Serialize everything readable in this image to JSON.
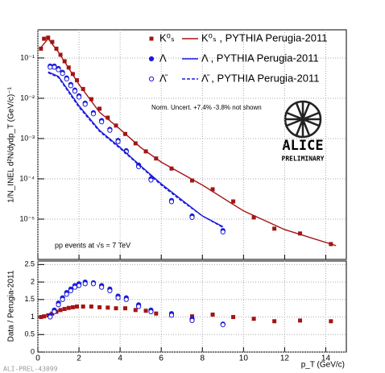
{
  "chart_data": [
    {
      "type": "line",
      "log_y": true,
      "grid": true,
      "y_label": "1/N_INEL d²N/dydp_T (GeV/c)⁻¹",
      "xlim": [
        0,
        15
      ],
      "ylim": [
        1e-06,
        0.5
      ],
      "yticks": [
        {
          "value": 1e-05,
          "label": "10⁻⁵"
        },
        {
          "value": 0.0001,
          "label": "10⁻⁴"
        },
        {
          "value": 0.001,
          "label": "10⁻³"
        },
        {
          "value": 0.01,
          "label": "10⁻²"
        },
        {
          "value": 0.1,
          "label": "10⁻¹"
        }
      ],
      "annotations": [
        "Norm. Uncert. +7.4% -3.8% not shown",
        "pp events at √s = 7 TeV",
        "ALICE",
        "PRELIMINARY"
      ],
      "series": [
        {
          "name": "K⁰ₛ",
          "color": "#a31515",
          "marker": "square",
          "x": [
            0.15,
            0.3,
            0.5,
            0.7,
            0.9,
            1.1,
            1.3,
            1.5,
            1.7,
            1.9,
            2.2,
            2.6,
            3.0,
            3.4,
            3.8,
            4.25,
            4.75,
            5.25,
            5.75,
            6.5,
            7.5,
            8.5,
            9.5,
            10.5,
            11.5,
            12.75,
            14.25
          ],
          "values": [
            0.17,
            0.3,
            0.32,
            0.25,
            0.17,
            0.12,
            0.083,
            0.058,
            0.04,
            0.028,
            0.017,
            0.0095,
            0.0055,
            0.0033,
            0.0021,
            0.0013,
            0.00076,
            0.00048,
            0.00032,
            0.00018,
            9.1e-05,
            5.5e-05,
            2.75e-05,
            1.1e-05,
            5.8e-06,
            4.4e-06,
            2.4e-06
          ]
        },
        {
          "name": "Λ",
          "color": "#1a1adb",
          "marker": "circle",
          "x": [
            0.6,
            0.8,
            1.0,
            1.2,
            1.4,
            1.6,
            1.8,
            2.0,
            2.3,
            2.7,
            3.1,
            3.5,
            3.9,
            4.3,
            4.9,
            5.5,
            6.5,
            7.5,
            9
          ],
          "values": [
            0.063,
            0.063,
            0.055,
            0.044,
            0.032,
            0.022,
            0.016,
            0.0115,
            0.0076,
            0.0044,
            0.0028,
            0.0017,
            0.0009,
            0.0005,
            0.00022,
            0.0001,
            2.9e-05,
            1.2e-05,
            5.2e-06
          ]
        },
        {
          "name": "Λ̄",
          "color": "#1a1adb",
          "marker": "open-circle",
          "x": [
            0.6,
            0.8,
            1.0,
            1.2,
            1.4,
            1.6,
            1.8,
            2.0,
            2.3,
            2.7,
            3.1,
            3.5,
            3.9,
            4.3,
            4.9,
            5.5,
            6.5,
            7.5,
            9
          ],
          "values": [
            0.059,
            0.059,
            0.051,
            0.041,
            0.03,
            0.0205,
            0.015,
            0.0107,
            0.0071,
            0.0041,
            0.0026,
            0.0016,
            0.00084,
            0.00047,
            0.0002,
            9.3e-05,
            2.7e-05,
            1.1e-05,
            4.8e-06
          ]
        },
        {
          "name": "K⁰ₛ , PYTHIA Perugia-2011",
          "color": "#a31515",
          "dash": false,
          "x": [
            0.1,
            0.5,
            1,
            2,
            3,
            4,
            5,
            6,
            8,
            10,
            12,
            14.5
          ],
          "values": [
            0.17,
            0.3,
            0.14,
            0.022,
            0.0045,
            0.0017,
            0.0006,
            0.00026,
            7e-05,
            1.6e-05,
            5.5e-06,
            2.2e-06
          ]
        },
        {
          "name": "Λ , PYTHIA Perugia-2011",
          "color": "#1a1adb",
          "dash": false,
          "x": [
            0.5,
            1,
            2,
            3,
            4,
            5,
            6,
            7,
            8,
            9
          ],
          "values": [
            0.045,
            0.035,
            0.0065,
            0.0016,
            0.0006,
            0.00021,
            7.5e-05,
            3e-05,
            1.2e-05,
            6.5e-06
          ]
        },
        {
          "name": "Λ̄ , PYTHIA Perugia-2011",
          "color": "#1a1adb",
          "dash": true,
          "x": [
            0.5,
            1,
            2,
            3,
            4,
            5,
            6,
            7,
            8,
            9
          ],
          "values": [
            0.043,
            0.033,
            0.006,
            0.0015,
            0.00057,
            0.0002,
            7e-05,
            2.8e-05,
            1.2e-05,
            6.2e-06
          ]
        }
      ]
    },
    {
      "type": "line",
      "grid": true,
      "y_label": "Data / Perugia-2011",
      "x_label": "p_T (GeV/c)",
      "xlim": [
        0,
        15
      ],
      "ylim": [
        0,
        2.6
      ],
      "xticks": [
        0,
        2,
        4,
        6,
        8,
        10,
        12,
        14
      ],
      "yticks": [
        0,
        0.5,
        1,
        1.5,
        2,
        2.5
      ],
      "series": [
        {
          "color": "#a31515",
          "marker": "square",
          "x": [
            0.15,
            0.3,
            0.5,
            0.7,
            0.9,
            1.1,
            1.3,
            1.5,
            1.7,
            1.9,
            2.2,
            2.6,
            3.0,
            3.4,
            3.8,
            4.25,
            4.75,
            5.25,
            5.75,
            6.5,
            7.5,
            8.5,
            9.5,
            10.5,
            11.5,
            12.75,
            14.25
          ],
          "values": [
            1.0,
            1.02,
            1.05,
            1.1,
            1.15,
            1.2,
            1.23,
            1.26,
            1.28,
            1.3,
            1.3,
            1.3,
            1.28,
            1.27,
            1.25,
            1.25,
            1.2,
            1.18,
            1.1,
            1.05,
            1.02,
            1.07,
            1.0,
            0.95,
            0.88,
            0.9,
            0.88
          ]
        },
        {
          "color": "#1a1adb",
          "marker": "circle",
          "x": [
            0.6,
            0.8,
            1.0,
            1.2,
            1.4,
            1.6,
            1.8,
            2.0,
            2.3,
            2.7,
            3.1,
            3.5,
            3.9,
            4.3,
            4.9,
            5.5,
            6.5,
            7.5,
            9
          ],
          "values": [
            1.05,
            1.2,
            1.4,
            1.55,
            1.7,
            1.8,
            1.9,
            1.95,
            2.0,
            1.98,
            1.9,
            1.8,
            1.6,
            1.55,
            1.35,
            1.2,
            1.1,
            0.95,
            0.8
          ]
        },
        {
          "color": "#1a1adb",
          "marker": "open-circle",
          "x": [
            0.6,
            0.8,
            1.0,
            1.2,
            1.4,
            1.6,
            1.8,
            2.0,
            2.3,
            2.7,
            3.1,
            3.5,
            3.9,
            4.3,
            4.9,
            5.5,
            6.5,
            7.5,
            9
          ],
          "values": [
            1.0,
            1.15,
            1.35,
            1.5,
            1.65,
            1.75,
            1.85,
            1.9,
            1.95,
            1.95,
            1.85,
            1.75,
            1.55,
            1.5,
            1.3,
            1.15,
            1.05,
            0.9,
            0.78
          ]
        }
      ]
    }
  ],
  "watermark": "ALI-PREL-43099"
}
